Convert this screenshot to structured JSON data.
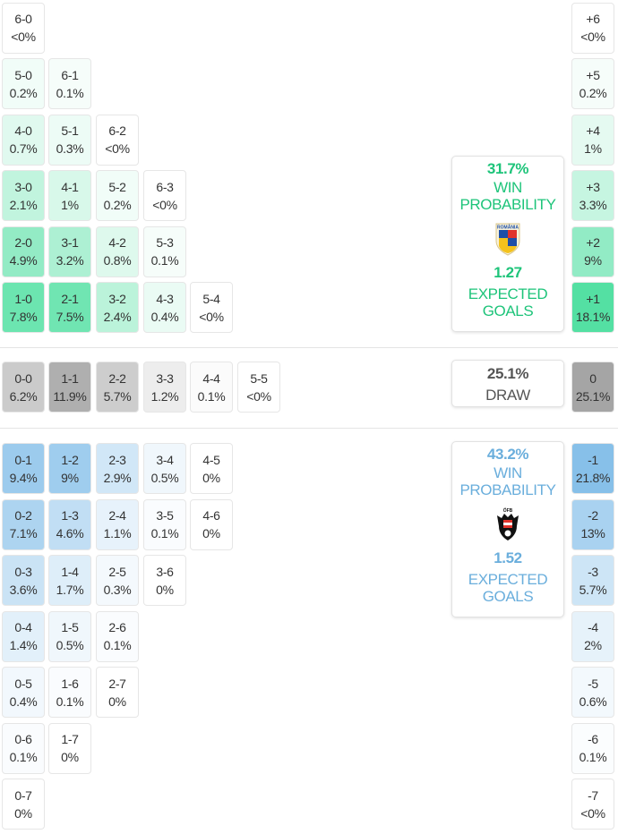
{
  "colors": {
    "home": "#3ddc97",
    "draw": "#9e9e9e",
    "away": "#7fbce8",
    "home_text": "#1ec47a",
    "away_text": "#6aaedc",
    "draw_text": "#555555"
  },
  "home": {
    "team_crest_text": "ROMÂNIA",
    "win_probability": "31.7%",
    "win_label": [
      "WIN",
      "PROBABILITY"
    ],
    "expected_goals": "1.27",
    "xg_label": [
      "EXPECTED",
      "GOALS"
    ]
  },
  "draw": {
    "probability": "25.1%",
    "label": "DRAW"
  },
  "away": {
    "team_crest_text": "ÖFB",
    "win_probability": "43.2%",
    "win_label": [
      "WIN",
      "PROBABILITY"
    ],
    "expected_goals": "1.52",
    "xg_label": [
      "EXPECTED",
      "GOALS"
    ]
  },
  "home_scores": [
    {
      "score": "6-0",
      "pct": "<0%"
    },
    {
      "score": "5-0",
      "pct": "0.2%"
    },
    {
      "score": "6-1",
      "pct": "0.1%"
    },
    {
      "score": "4-0",
      "pct": "0.7%"
    },
    {
      "score": "5-1",
      "pct": "0.3%"
    },
    {
      "score": "6-2",
      "pct": "<0%"
    },
    {
      "score": "3-0",
      "pct": "2.1%"
    },
    {
      "score": "4-1",
      "pct": "1%"
    },
    {
      "score": "5-2",
      "pct": "0.2%"
    },
    {
      "score": "6-3",
      "pct": "<0%"
    },
    {
      "score": "2-0",
      "pct": "4.9%"
    },
    {
      "score": "3-1",
      "pct": "3.2%"
    },
    {
      "score": "4-2",
      "pct": "0.8%"
    },
    {
      "score": "5-3",
      "pct": "0.1%"
    },
    {
      "score": "1-0",
      "pct": "7.8%"
    },
    {
      "score": "2-1",
      "pct": "7.5%"
    },
    {
      "score": "3-2",
      "pct": "2.4%"
    },
    {
      "score": "4-3",
      "pct": "0.4%"
    },
    {
      "score": "5-4",
      "pct": "<0%"
    }
  ],
  "draw_scores": [
    {
      "score": "0-0",
      "pct": "6.2%"
    },
    {
      "score": "1-1",
      "pct": "11.9%"
    },
    {
      "score": "2-2",
      "pct": "5.7%"
    },
    {
      "score": "3-3",
      "pct": "1.2%"
    },
    {
      "score": "4-4",
      "pct": "0.1%"
    },
    {
      "score": "5-5",
      "pct": "<0%"
    }
  ],
  "away_scores": [
    {
      "score": "0-1",
      "pct": "9.4%"
    },
    {
      "score": "1-2",
      "pct": "9%"
    },
    {
      "score": "2-3",
      "pct": "2.9%"
    },
    {
      "score": "3-4",
      "pct": "0.5%"
    },
    {
      "score": "4-5",
      "pct": "0%"
    },
    {
      "score": "0-2",
      "pct": "7.1%"
    },
    {
      "score": "1-3",
      "pct": "4.6%"
    },
    {
      "score": "2-4",
      "pct": "1.1%"
    },
    {
      "score": "3-5",
      "pct": "0.1%"
    },
    {
      "score": "4-6",
      "pct": "0%"
    },
    {
      "score": "0-3",
      "pct": "3.6%"
    },
    {
      "score": "1-4",
      "pct": "1.7%"
    },
    {
      "score": "2-5",
      "pct": "0.3%"
    },
    {
      "score": "3-6",
      "pct": "0%"
    },
    {
      "score": "0-4",
      "pct": "1.4%"
    },
    {
      "score": "1-5",
      "pct": "0.5%"
    },
    {
      "score": "2-6",
      "pct": "0.1%"
    },
    {
      "score": "0-5",
      "pct": "0.4%"
    },
    {
      "score": "1-6",
      "pct": "0.1%"
    },
    {
      "score": "2-7",
      "pct": "0%"
    },
    {
      "score": "0-6",
      "pct": "0.1%"
    },
    {
      "score": "1-7",
      "pct": "0%"
    },
    {
      "score": "0-7",
      "pct": "0%"
    }
  ],
  "margins": [
    {
      "margin": "+6",
      "pct": "<0%"
    },
    {
      "margin": "+5",
      "pct": "0.2%"
    },
    {
      "margin": "+4",
      "pct": "1%"
    },
    {
      "margin": "+3",
      "pct": "3.3%"
    },
    {
      "margin": "+2",
      "pct": "9%"
    },
    {
      "margin": "+1",
      "pct": "18.1%"
    },
    {
      "margin": "0",
      "pct": "25.1%"
    },
    {
      "margin": "-1",
      "pct": "21.8%"
    },
    {
      "margin": "-2",
      "pct": "13%"
    },
    {
      "margin": "-3",
      "pct": "5.7%"
    },
    {
      "margin": "-4",
      "pct": "2%"
    },
    {
      "margin": "-5",
      "pct": "0.6%"
    },
    {
      "margin": "-6",
      "pct": "0.1%"
    },
    {
      "margin": "-7",
      "pct": "<0%"
    }
  ]
}
